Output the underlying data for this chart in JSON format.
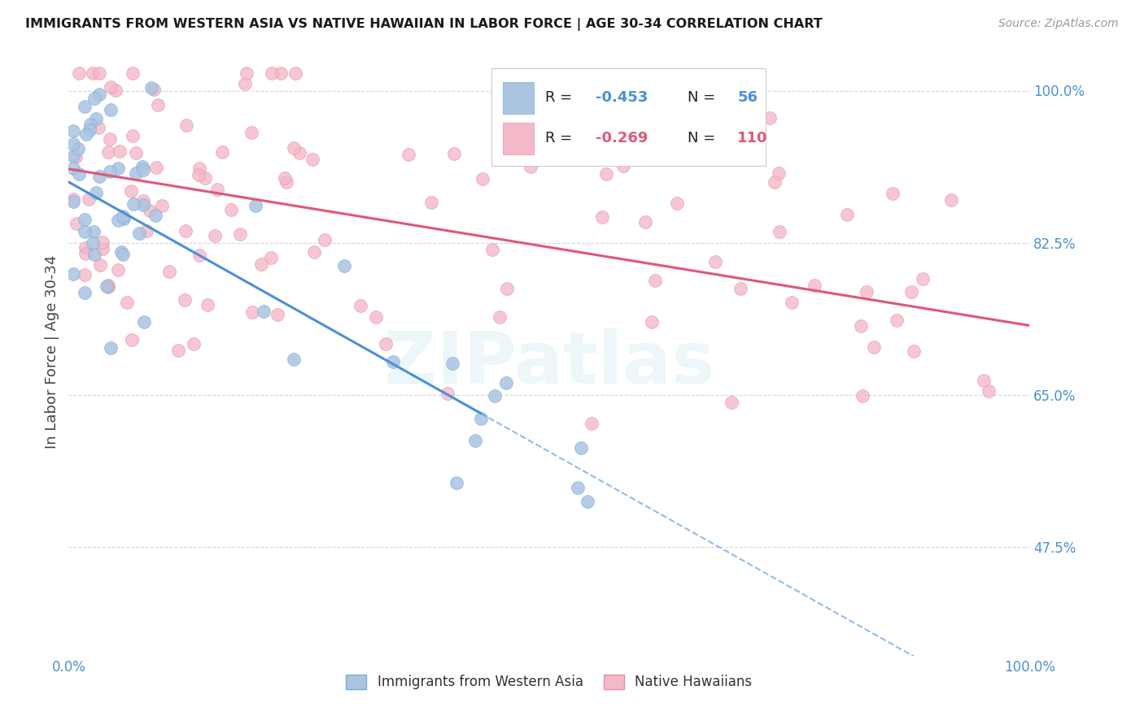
{
  "title": "IMMIGRANTS FROM WESTERN ASIA VS NATIVE HAWAIIAN IN LABOR FORCE | AGE 30-34 CORRELATION CHART",
  "source": "Source: ZipAtlas.com",
  "ylabel": "In Labor Force | Age 30-34",
  "xlim": [
    0,
    1.0
  ],
  "ylim": [
    0.35,
    1.05
  ],
  "yticks": [
    0.475,
    0.65,
    0.825,
    1.0
  ],
  "ytick_labels": [
    "47.5%",
    "65.0%",
    "82.5%",
    "100.0%"
  ],
  "xticks": [
    0.0,
    0.25,
    0.5,
    0.75,
    1.0
  ],
  "xtick_labels": [
    "0.0%",
    "",
    "",
    "",
    "100.0%"
  ],
  "blue_R": -0.453,
  "blue_N": 56,
  "pink_R": -0.269,
  "pink_N": 110,
  "blue_scatter_color": "#aac4e2",
  "pink_scatter_color": "#f5b8c8",
  "blue_edge_color": "#7aadd4",
  "pink_edge_color": "#e090a8",
  "blue_line_color": "#4a90d9",
  "pink_line_color": "#e05878",
  "background_color": "#ffffff",
  "grid_color": "#cccccc",
  "text_color": "#4a90d9",
  "legend_label_blue": "Immigrants from Western Asia",
  "legend_label_pink": "Native Hawaiians",
  "title_fontsize": 11.5,
  "tick_fontsize": 12,
  "label_fontsize": 13,
  "blue_intercept": 0.895,
  "blue_slope": -0.62,
  "pink_intercept": 0.91,
  "pink_slope": -0.18
}
